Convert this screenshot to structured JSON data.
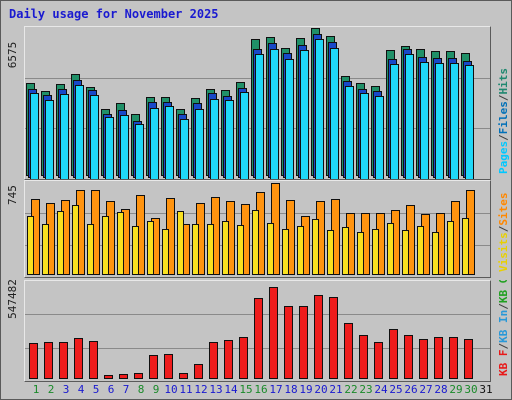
{
  "title": "Daily usage for November 2025",
  "panels": {
    "top": {
      "max_label": "6575",
      "legend": [
        {
          "text": "Pages",
          "color": "#00c8ff"
        },
        {
          "text": "/",
          "color": "#404040"
        },
        {
          "text": "Files",
          "color": "#0070b8"
        },
        {
          "text": "/",
          "color": "#404040"
        },
        {
          "text": "Hits",
          "color": "#208870"
        }
      ]
    },
    "middle": {
      "max_label": "745",
      "legend": [
        {
          "text": "Visits",
          "color": "#e8d000"
        },
        {
          "text": "/",
          "color": "#404040"
        },
        {
          "text": "Sites",
          "color": "#ff8800"
        }
      ]
    },
    "bottom": {
      "max_label": "547482",
      "legend": [
        {
          "text": "KB F",
          "color": "#e81818"
        },
        {
          "text": "/",
          "color": "#404040"
        },
        {
          "text": "KB In",
          "color": "#2898d8"
        },
        {
          "text": "/",
          "color": "#404040"
        },
        {
          "text": "KB Out",
          "color": "#20a020"
        }
      ]
    }
  },
  "colors": {
    "hits": "#209068",
    "files": "#1848c8",
    "pages": "#20d8f8",
    "visits": "#f8e020",
    "sites": "#ff9410",
    "kbf": "#ee1c1c",
    "weekday_label": "#1a1ad0",
    "weekend_label": "#1a8a2a"
  },
  "chart_data": {
    "type": "bar",
    "categories": [
      "1",
      "2",
      "3",
      "4",
      "5",
      "6",
      "7",
      "8",
      "9",
      "10",
      "11",
      "12",
      "13",
      "14",
      "15",
      "16",
      "17",
      "18",
      "19",
      "20",
      "21",
      "22",
      "23",
      "24",
      "25",
      "26",
      "27",
      "28",
      "29",
      "30",
      "31"
    ],
    "weekend_days": [
      1,
      2,
      8,
      9,
      15,
      16,
      22,
      23,
      29,
      30
    ],
    "series": [
      {
        "name": "Hits",
        "panel": "top",
        "values": [
          4120,
          3760,
          4080,
          4510,
          3970,
          2980,
          3230,
          2760,
          3530,
          3530,
          2980,
          3470,
          3880,
          3810,
          4180,
          6080,
          6190,
          5690,
          6110,
          6575,
          6210,
          4450,
          4140,
          3980,
          5600,
          5790,
          5630,
          5540,
          5560,
          5480,
          0
        ]
      },
      {
        "name": "Files",
        "panel": "top",
        "values": [
          3970,
          3680,
          3960,
          4370,
          3920,
          2860,
          3000,
          2540,
          3360,
          3390,
          2830,
          3320,
          3760,
          3650,
          4000,
          5730,
          6000,
          5540,
          5920,
          6390,
          6030,
          4290,
          3970,
          3850,
          5290,
          5730,
          5370,
          5320,
          5350,
          5210,
          0
        ]
      },
      {
        "name": "Pages",
        "panel": "top",
        "values": [
          3850,
          3570,
          3820,
          4210,
          3780,
          2780,
          2880,
          2470,
          3210,
          3280,
          2730,
          3170,
          3610,
          3540,
          3900,
          5580,
          5840,
          5370,
          5790,
          6250,
          5880,
          4170,
          3850,
          3720,
          5170,
          5600,
          5260,
          5200,
          5200,
          5110,
          0
        ]
      },
      {
        "name": "Visits",
        "panel": "middle",
        "values": [
          480,
          415,
          515,
          565,
          410,
          475,
          510,
          395,
          440,
          375,
          520,
          415,
          410,
          435,
          405,
          530,
          420,
          375,
          395,
          450,
          365,
          390,
          345,
          370,
          420,
          365,
          400,
          345,
          440,
          460,
          0
        ]
      },
      {
        "name": "Sites",
        "panel": "middle",
        "values": [
          615,
          580,
          605,
          685,
          690,
          600,
          535,
          645,
          460,
          620,
          410,
          580,
          630,
          600,
          575,
          670,
          745,
          605,
          480,
          600,
          615,
          500,
          505,
          505,
          530,
          565,
          495,
          500,
          600,
          690,
          0
        ]
      },
      {
        "name": "KB F",
        "panel": "bottom",
        "values": [
          205000,
          210000,
          213000,
          233000,
          215000,
          25000,
          30000,
          35000,
          135000,
          145000,
          35000,
          85000,
          213000,
          220000,
          240000,
          460000,
          523000,
          417000,
          414000,
          480000,
          467000,
          318000,
          251000,
          209000,
          286000,
          250000,
          226000,
          237000,
          237000,
          230000,
          0
        ]
      }
    ],
    "panel_max": {
      "top": 6575,
      "middle": 745,
      "bottom": 547482
    },
    "ylim_top": [
      0,
      6575
    ],
    "ylim_middle": [
      0,
      745
    ],
    "ylim_bottom": [
      0,
      547482
    ],
    "grid": true
  }
}
